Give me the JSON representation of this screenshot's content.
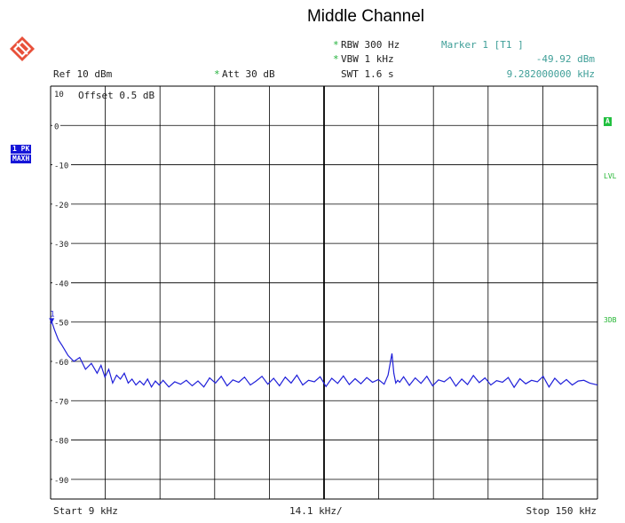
{
  "title": "Middle Channel",
  "header": {
    "rbw": "RBW 300 Hz",
    "vbw": "VBW 1 kHz",
    "swt": "SWT 1.6 s",
    "marker_label": "Marker 1 [T1 ]",
    "marker_level": "-49.92 dBm",
    "marker_freq": "9.282000000 kHz",
    "ref": "Ref  10 dBm",
    "att": "Att  30 dB",
    "offset": "Offset  0.5 dB",
    "star": "*"
  },
  "left_tags": {
    "trace": "1 PK",
    "mode": "MAXH"
  },
  "right_tags": {
    "a": "A",
    "lvl": "LVL",
    "db": "3DB"
  },
  "footer": {
    "start": "Start 9 kHz",
    "span": "14.1 kHz/",
    "stop": "Stop 150 kHz"
  },
  "colors": {
    "trace": "#1f1fd9",
    "grid": "#000000",
    "accent_teal": "#3f9f98",
    "accent_green": "#21b13a",
    "tag_blue": "#1515d8"
  },
  "chart_data": {
    "type": "line",
    "title": "Middle Channel",
    "xlabel": "",
    "ylabel": "",
    "xlim": [
      9,
      150
    ],
    "ylim": [
      -95,
      10
    ],
    "y_tick_labels": [
      "10",
      "0",
      "-10",
      "-20",
      "-30",
      "-40",
      "-50",
      "-60",
      "-70",
      "-80",
      "-90"
    ],
    "y_tick_values": [
      10,
      0,
      -10,
      -20,
      -30,
      -40,
      -50,
      -60,
      -70,
      -80,
      -90
    ],
    "marker": {
      "x": 9.282,
      "y": -49.92,
      "label": "1"
    },
    "grid": true,
    "series": [
      {
        "values_x": [
          9.0,
          9.3,
          10.0,
          11.0,
          12.0,
          13.5,
          15.0,
          16.5,
          18.0,
          19.5,
          21.0,
          22.0,
          23.0,
          24.0,
          25.0,
          26.0,
          27.0,
          28.0,
          29.0,
          30.0,
          31.0,
          32.0,
          33.0,
          34.0,
          35.0,
          36.0,
          37.0,
          38.0,
          39.5,
          41.0,
          42.5,
          44.0,
          45.5,
          47.0,
          48.5,
          50.0,
          51.5,
          53.0,
          54.5,
          56.0,
          57.5,
          59.0,
          60.5,
          62.0,
          63.5,
          65.0,
          66.5,
          68.0,
          69.5,
          71.0,
          72.5,
          74.0,
          75.5,
          77.0,
          78.5,
          80.0,
          81.5,
          83.0,
          84.5,
          86.0,
          87.5,
          89.0,
          90.5,
          92.0,
          93.5,
          95.0,
          96.0,
          97.0,
          97.5,
          98.0,
          98.5,
          99.0,
          100.0,
          101.5,
          103.0,
          104.5,
          106.0,
          107.5,
          109.0,
          110.5,
          112.0,
          113.5,
          115.0,
          116.5,
          118.0,
          119.5,
          121.0,
          122.5,
          124.0,
          125.5,
          127.0,
          128.5,
          130.0,
          131.5,
          133.0,
          134.5,
          136.0,
          137.5,
          139.0,
          140.5,
          142.0,
          143.5,
          145.0,
          146.5,
          148.0,
          150.0
        ],
        "values": [
          -50.5,
          -49.9,
          -52.0,
          -54.5,
          -56.0,
          -58.5,
          -60.0,
          -59.0,
          -62.0,
          -60.5,
          -63.0,
          -61.0,
          -64.0,
          -62.0,
          -65.5,
          -63.5,
          -64.5,
          -63.0,
          -65.5,
          -64.5,
          -66.0,
          -65.0,
          -66.0,
          -64.5,
          -66.5,
          -65.0,
          -66.0,
          -64.8,
          -66.5,
          -65.2,
          -65.8,
          -64.8,
          -66.2,
          -65.0,
          -66.5,
          -64.2,
          -65.5,
          -63.8,
          -66.2,
          -64.7,
          -65.3,
          -64.0,
          -66.0,
          -65.0,
          -63.8,
          -65.8,
          -64.3,
          -66.2,
          -64.0,
          -65.5,
          -63.5,
          -66.0,
          -64.8,
          -65.2,
          -63.9,
          -66.4,
          -64.3,
          -65.6,
          -63.7,
          -65.9,
          -64.4,
          -65.7,
          -64.1,
          -65.3,
          -64.6,
          -65.8,
          -63.5,
          -58.0,
          -63.0,
          -65.5,
          -64.8,
          -65.3,
          -63.9,
          -66.1,
          -64.2,
          -65.6,
          -63.8,
          -66.2,
          -64.7,
          -65.2,
          -64.0,
          -66.3,
          -64.5,
          -65.9,
          -63.6,
          -65.4,
          -64.2,
          -66.0,
          -64.9,
          -65.3,
          -64.1,
          -66.6,
          -64.4,
          -65.7,
          -64.8,
          -65.2,
          -63.8,
          -66.5,
          -64.3,
          -65.8,
          -64.6,
          -66.0,
          -65.0,
          -64.8,
          -65.5,
          -66.0
        ],
        "name": ""
      }
    ]
  }
}
